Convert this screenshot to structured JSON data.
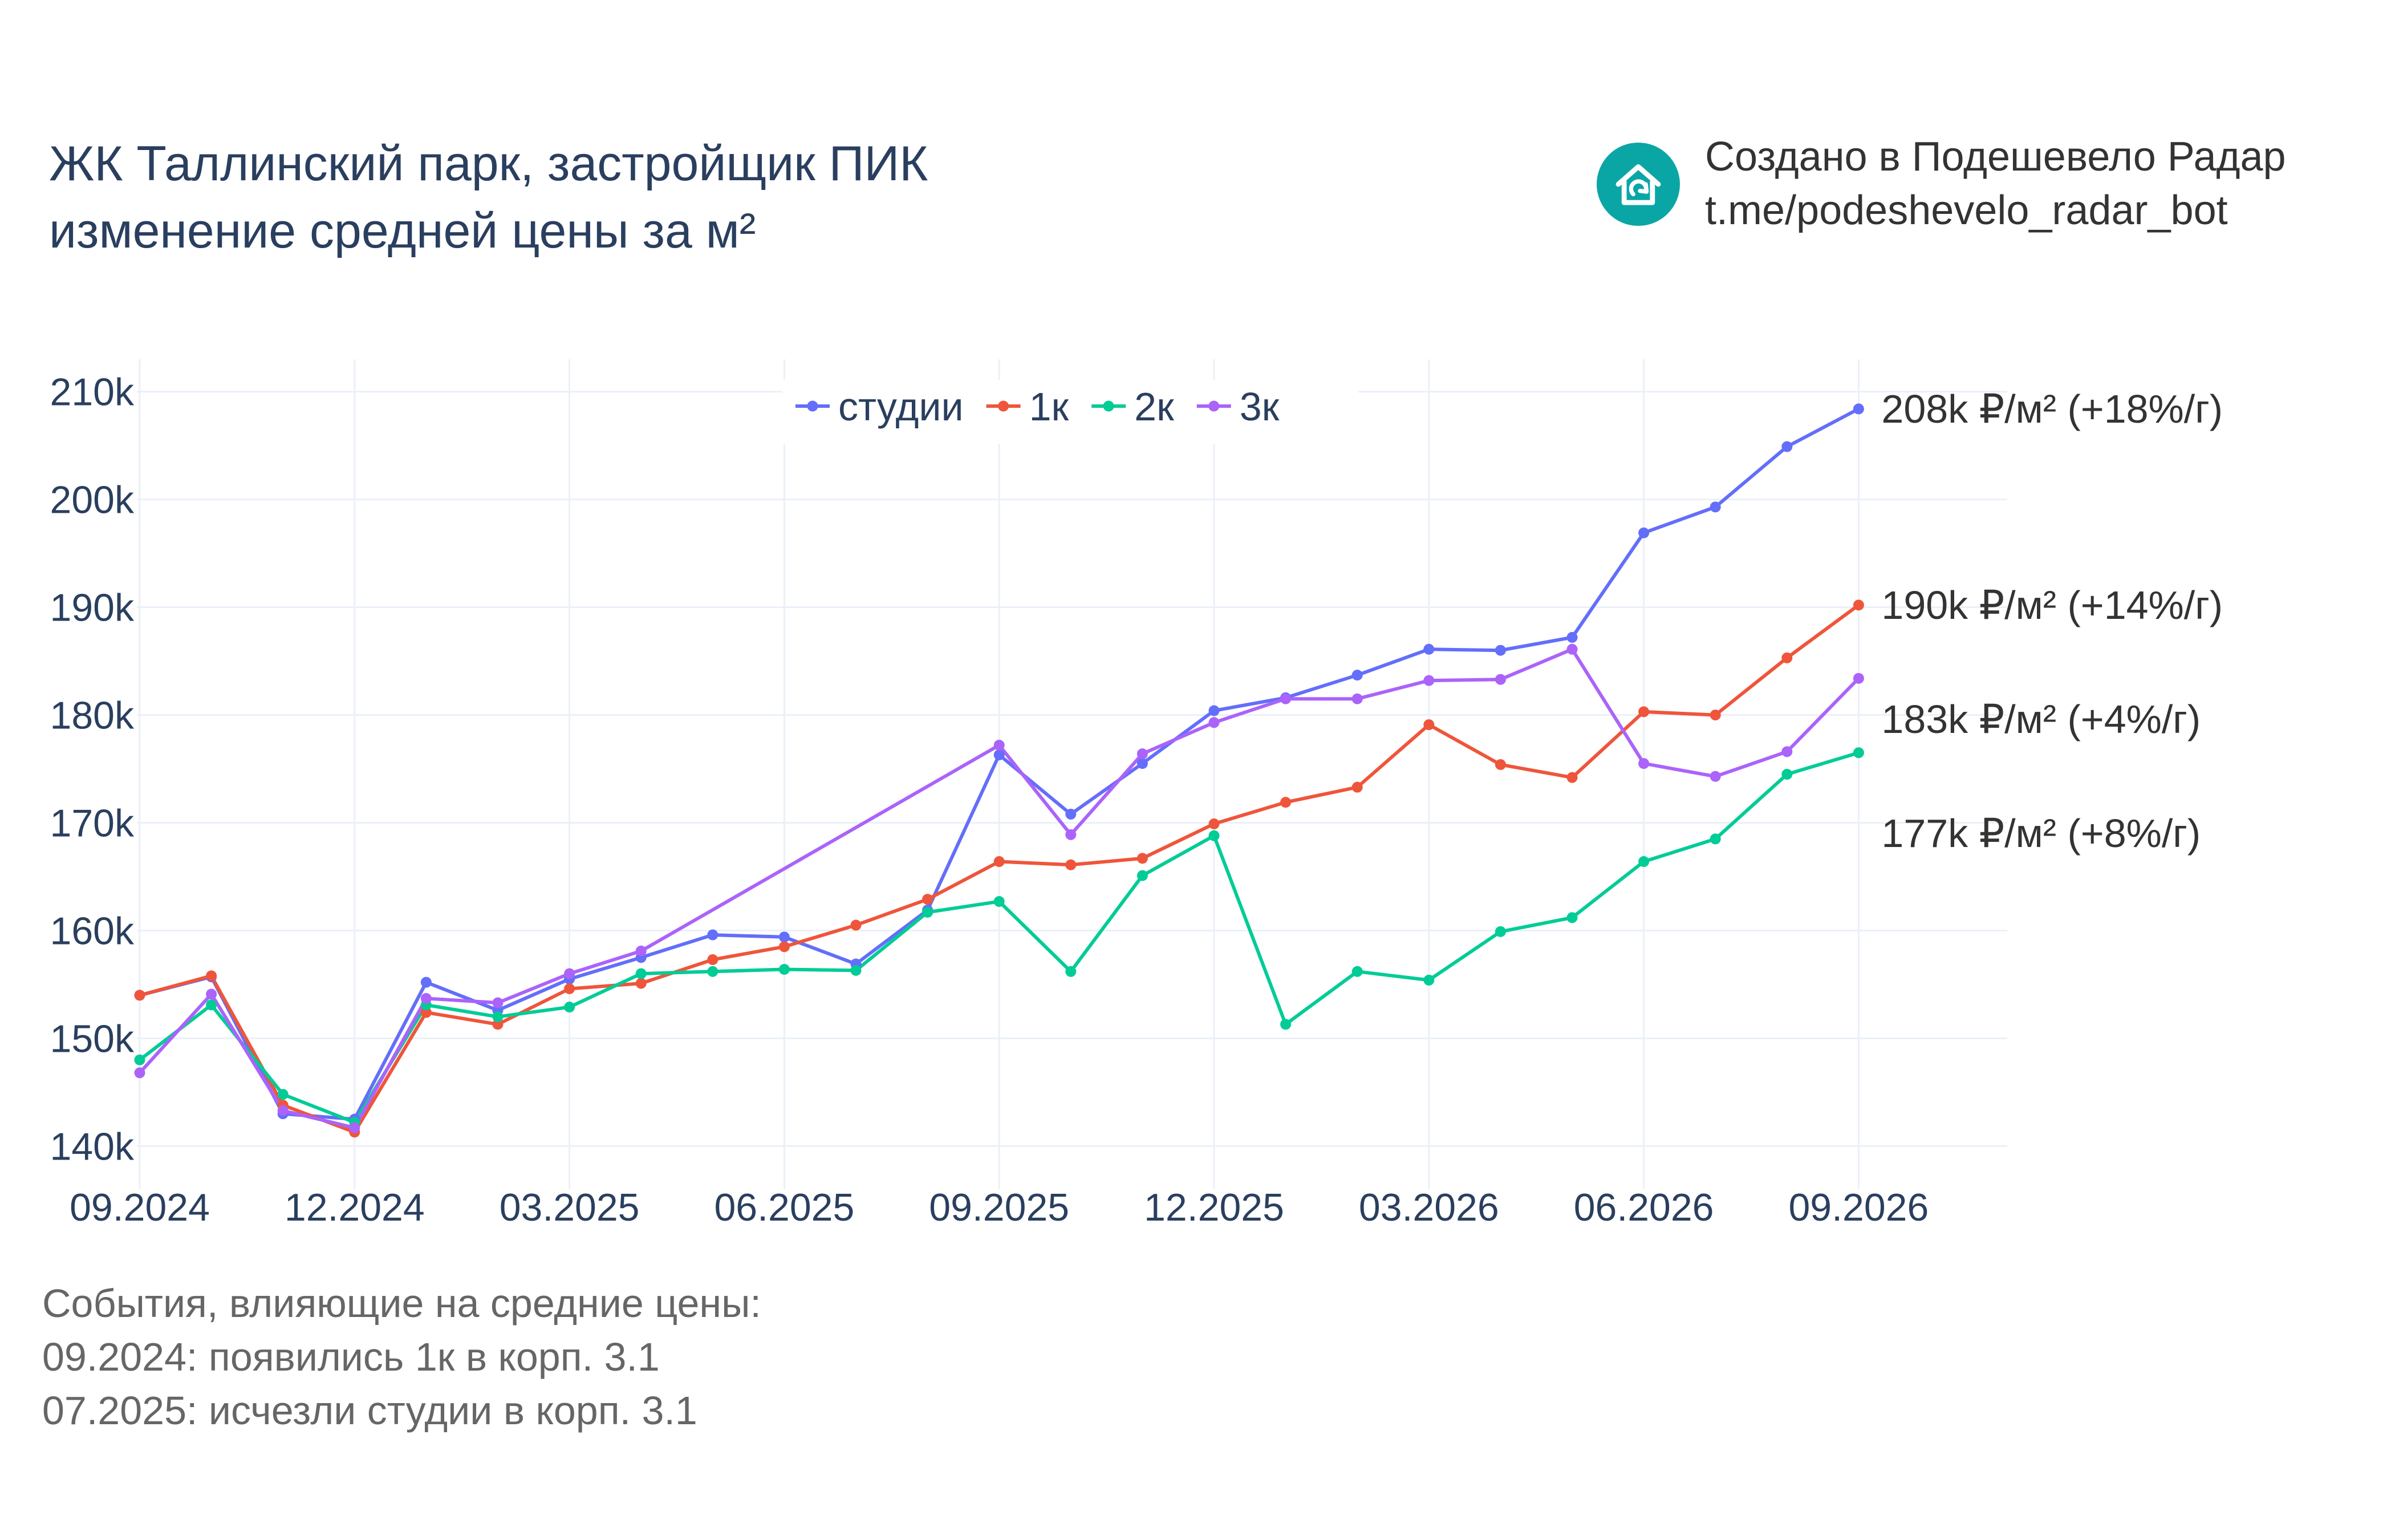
{
  "header": {
    "title_line1": "ЖК Таллинский парк, застройщик ПИК",
    "title_line2": "изменение средней цены за м²"
  },
  "credit": {
    "line1": "Создано в Подешевело Радар",
    "line2": "t.me/podeshevelo_radar_bot",
    "logo_icon": "house-refresh-icon",
    "logo_color": "#0aa6a6"
  },
  "events": {
    "heading": "События, влияющие на средние цены:",
    "items": [
      "09.2024: появились 1к в корп. 3.1",
      "07.2025: исчезли студии в корп. 3.1"
    ]
  },
  "chart_data": {
    "type": "line",
    "x_ticks": [
      "09.2024",
      "12.2024",
      "03.2025",
      "06.2025",
      "09.2025",
      "12.2025",
      "03.2026",
      "06.2026",
      "09.2026"
    ],
    "y_ticks": [
      "140k",
      "150k",
      "160k",
      "170k",
      "180k",
      "190k",
      "200k",
      "210k"
    ],
    "ylim": [
      136000,
      213000
    ],
    "xlim": [
      "2024-09",
      "2026-11"
    ],
    "grid": true,
    "legend_position": "top-center",
    "series": [
      {
        "name": "студии",
        "color": "#636efa",
        "end_label": "208k ₽/м² (+18%/г)",
        "points": [
          [
            "2024-09",
            154000
          ],
          [
            "2024-10",
            155700
          ],
          [
            "2024-11",
            143000
          ],
          [
            "2024-12",
            142500
          ],
          [
            "2025-01",
            155200
          ],
          [
            "2025-02",
            152600
          ],
          [
            "2025-03",
            155500
          ],
          [
            "2025-04",
            157500
          ],
          [
            "2025-05",
            159600
          ],
          [
            "2025-06",
            159400
          ],
          [
            "2025-07",
            156900
          ],
          [
            "2025-08",
            161900
          ],
          [
            "2025-09",
            176300
          ],
          [
            "2025-10",
            170800
          ],
          [
            "2025-11",
            175500
          ],
          [
            "2025-12",
            180400
          ],
          [
            "2026-01",
            181600
          ],
          [
            "2026-02",
            183700
          ],
          [
            "2026-03",
            186100
          ],
          [
            "2026-04",
            186000
          ],
          [
            "2026-05",
            187200
          ],
          [
            "2026-06",
            196900
          ],
          [
            "2026-07",
            199300
          ],
          [
            "2026-08",
            204900
          ],
          [
            "2026-09",
            208400
          ]
        ]
      },
      {
        "name": "1к",
        "color": "#ef553b",
        "end_label": "190k ₽/м² (+14%/г)",
        "points": [
          [
            "2024-09",
            154000
          ],
          [
            "2024-10",
            155800
          ],
          [
            "2024-11",
            143800
          ],
          [
            "2024-12",
            141300
          ],
          [
            "2025-01",
            152400
          ],
          [
            "2025-02",
            151300
          ],
          [
            "2025-03",
            154600
          ],
          [
            "2025-04",
            155100
          ],
          [
            "2025-05",
            157300
          ],
          [
            "2025-06",
            158500
          ],
          [
            "2025-07",
            160500
          ],
          [
            "2025-08",
            162900
          ],
          [
            "2025-09",
            166400
          ],
          [
            "2025-10",
            166100
          ],
          [
            "2025-11",
            166700
          ],
          [
            "2025-12",
            169900
          ],
          [
            "2026-01",
            171900
          ],
          [
            "2026-02",
            173300
          ],
          [
            "2026-03",
            179100
          ],
          [
            "2026-04",
            175400
          ],
          [
            "2026-05",
            174200
          ],
          [
            "2026-06",
            180300
          ],
          [
            "2026-07",
            180000
          ],
          [
            "2026-08",
            185300
          ],
          [
            "2026-09",
            190200
          ]
        ]
      },
      {
        "name": "2к",
        "color": "#00cc96",
        "end_label": "177k ₽/м² (+8%/г)",
        "points": [
          [
            "2024-09",
            148000
          ],
          [
            "2024-10",
            153100
          ],
          [
            "2024-11",
            144800
          ],
          [
            "2024-12",
            142200
          ],
          [
            "2025-01",
            153100
          ],
          [
            "2025-02",
            152000
          ],
          [
            "2025-03",
            152900
          ],
          [
            "2025-04",
            156000
          ],
          [
            "2025-05",
            156200
          ],
          [
            "2025-06",
            156400
          ],
          [
            "2025-07",
            156300
          ],
          [
            "2025-08",
            161700
          ],
          [
            "2025-09",
            162700
          ],
          [
            "2025-10",
            156200
          ],
          [
            "2025-11",
            165100
          ],
          [
            "2025-12",
            168800
          ],
          [
            "2026-01",
            151300
          ],
          [
            "2026-02",
            156200
          ],
          [
            "2026-03",
            155400
          ],
          [
            "2026-04",
            159900
          ],
          [
            "2026-05",
            161200
          ],
          [
            "2026-06",
            166400
          ],
          [
            "2026-07",
            168500
          ],
          [
            "2026-08",
            174500
          ],
          [
            "2026-09",
            176500
          ]
        ]
      },
      {
        "name": "3к",
        "color": "#ab63fa",
        "end_label": "183k ₽/м² (+4%/г)",
        "points": [
          [
            "2024-09",
            146800
          ],
          [
            "2024-10",
            154100
          ],
          [
            "2024-11",
            143300
          ],
          [
            "2024-12",
            141700
          ],
          [
            "2025-01",
            153700
          ],
          [
            "2025-02",
            153300
          ],
          [
            "2025-03",
            156000
          ],
          [
            "2025-04",
            158100
          ],
          [
            "2025-09",
            177200
          ],
          [
            "2025-10",
            168900
          ],
          [
            "2025-11",
            176400
          ],
          [
            "2025-12",
            179300
          ],
          [
            "2026-01",
            181500
          ],
          [
            "2026-02",
            181500
          ],
          [
            "2026-03",
            183200
          ],
          [
            "2026-04",
            183300
          ],
          [
            "2026-05",
            186100
          ],
          [
            "2026-06",
            175500
          ],
          [
            "2026-07",
            174300
          ],
          [
            "2026-08",
            176600
          ],
          [
            "2026-09",
            183400
          ]
        ]
      }
    ]
  }
}
